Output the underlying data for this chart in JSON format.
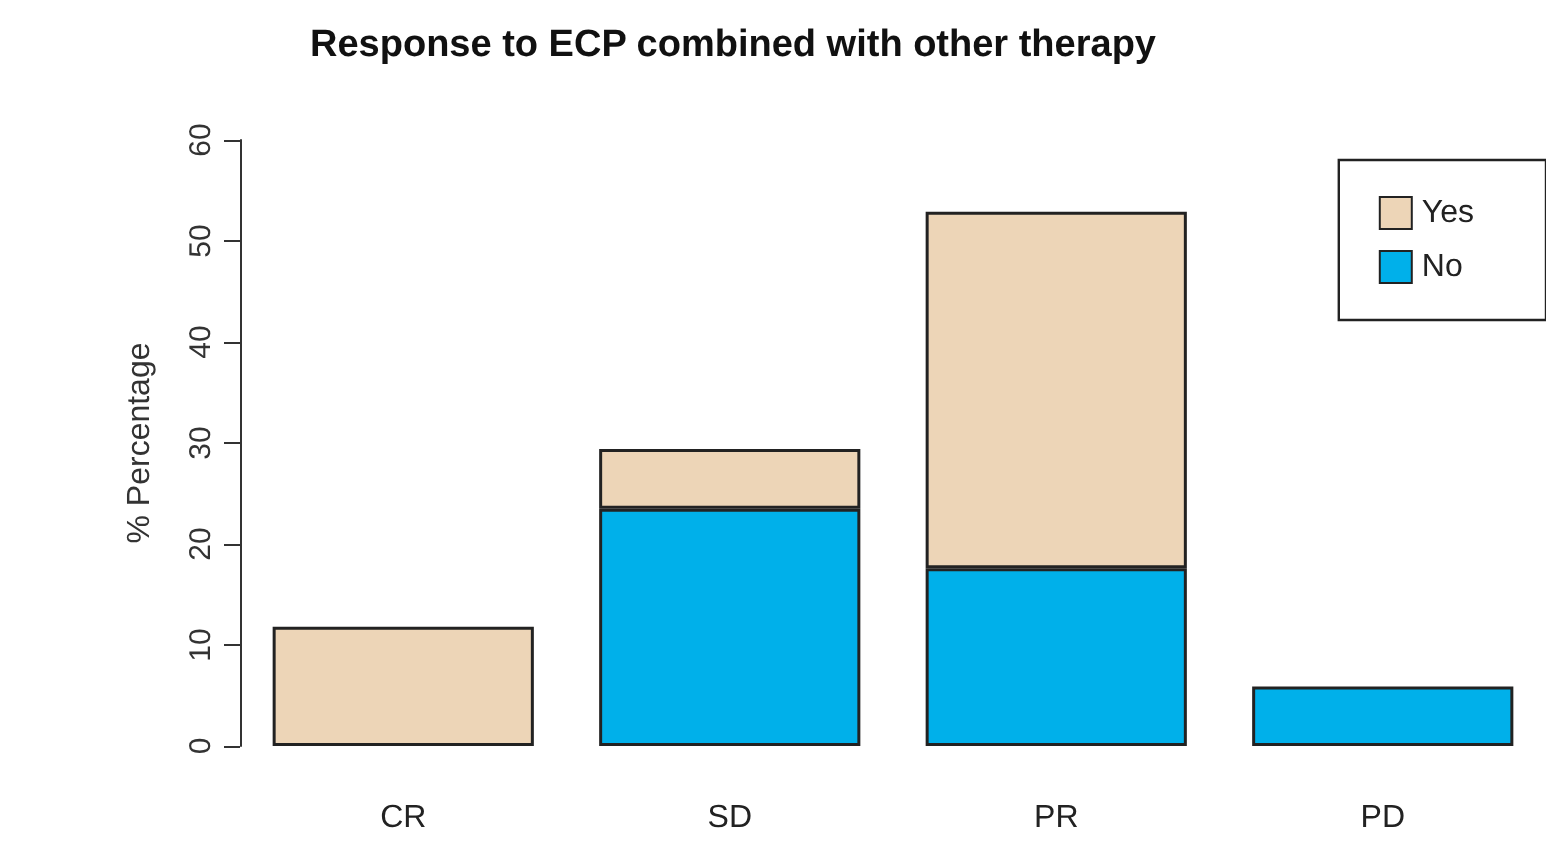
{
  "chart_data": {
    "type": "bar",
    "title": "Response to ECP combined with other therapy",
    "ylabel": "% Percentage",
    "categories": [
      "CR",
      "SD",
      "PR",
      "PD"
    ],
    "series": [
      {
        "name": "No",
        "color": "#00b0ea",
        "values": [
          0,
          23.5,
          17.6,
          5.9
        ]
      },
      {
        "name": "Yes",
        "color": "#edd5b7",
        "values": [
          11.8,
          5.9,
          35.3,
          0
        ]
      }
    ],
    "stacked": true,
    "ylim": [
      0,
      60
    ],
    "yticks": [
      0,
      10,
      20,
      30,
      40,
      50,
      60
    ],
    "grid": false,
    "legend": "top right"
  }
}
